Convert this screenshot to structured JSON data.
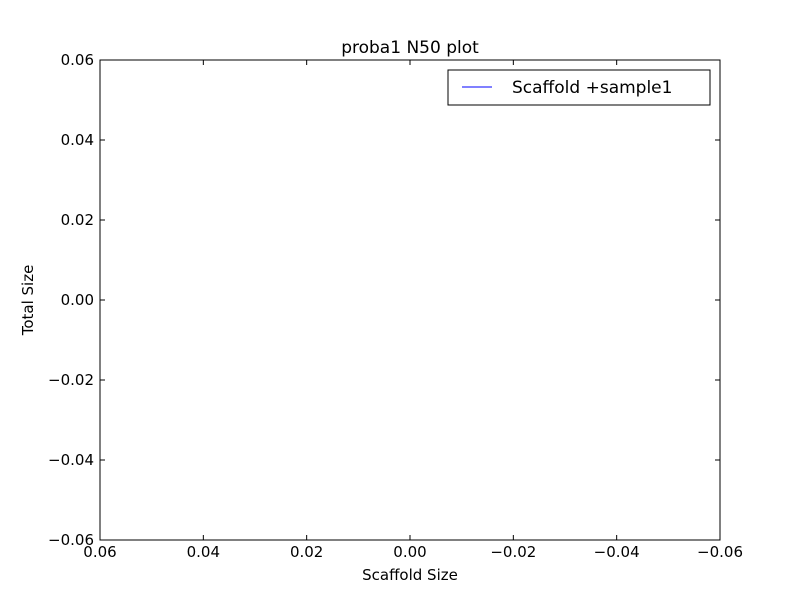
{
  "chart_data": {
    "type": "line",
    "title": "proba1 N50 plot",
    "xlabel": "Scaffold Size",
    "ylabel": "Total Size",
    "xlim": [
      0.06,
      -0.06
    ],
    "ylim": [
      -0.06,
      0.06
    ],
    "x_ticks": [
      0.06,
      0.04,
      0.02,
      0.0,
      -0.02,
      -0.04,
      -0.06
    ],
    "x_tick_labels": [
      "0.06",
      "0.04",
      "0.02",
      "0.00",
      "−0.02",
      "−0.04",
      "−0.06"
    ],
    "y_ticks": [
      0.06,
      0.04,
      0.02,
      0.0,
      -0.02,
      -0.04,
      -0.06
    ],
    "y_tick_labels": [
      "0.06",
      "0.04",
      "0.02",
      "0.00",
      "−0.02",
      "−0.04",
      "−0.06"
    ],
    "grid": false,
    "legend_position": "top-right",
    "series": [
      {
        "name": "Scaffold +sample1",
        "color": "#0000ff",
        "x": [],
        "y": []
      }
    ]
  }
}
